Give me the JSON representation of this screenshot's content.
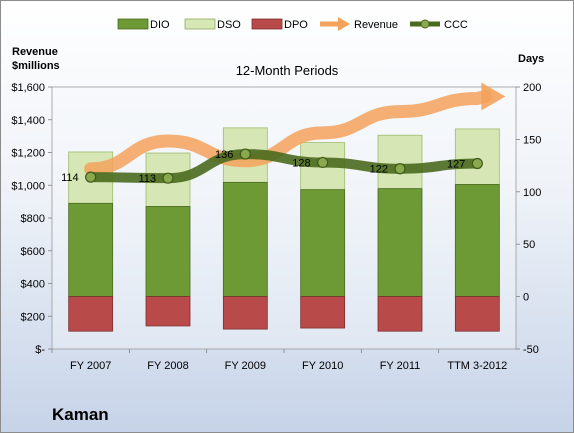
{
  "chart_data": {
    "type": "bar",
    "title": "12-Month Periods",
    "company": "Kaman",
    "categories": [
      "FY 2007",
      "FY 2008",
      "FY 2009",
      "FY 2010",
      "FY 2011",
      "TTM 3-2012"
    ],
    "left_axis": {
      "title_line1": "Revenue",
      "title_line2": "$millions",
      "ylim": [
        0,
        1600
      ],
      "ticks": [
        0,
        200,
        400,
        600,
        800,
        1000,
        1200,
        1400,
        1600
      ],
      "tick_labels": [
        "$-",
        "$200",
        "$400",
        "$600",
        "$800",
        "$1,000",
        "$1,200",
        "$1,400",
        "$1,600"
      ]
    },
    "right_axis": {
      "title": "Days",
      "ylim": [
        -50,
        200
      ],
      "ticks": [
        -50,
        0,
        50,
        100,
        150,
        200
      ],
      "tick_labels": [
        "-50",
        "0",
        "50",
        "100",
        "150",
        "200"
      ]
    },
    "series": [
      {
        "name": "DIO",
        "kind": "bar-stack",
        "axis": "days",
        "color": "#6e9a36",
        "values": [
          89,
          86,
          109,
          102,
          103,
          107
        ]
      },
      {
        "name": "DSO",
        "kind": "bar-stack",
        "axis": "days",
        "color": "#d6e6b4",
        "values": [
          49,
          51,
          52,
          45,
          51,
          53
        ]
      },
      {
        "name": "DPO",
        "kind": "bar-negative",
        "axis": "days",
        "color": "#b84a4a",
        "values": [
          -33,
          -28,
          -31,
          -30,
          -33,
          -33
        ]
      },
      {
        "name": "Revenue",
        "kind": "trend-arrow",
        "axis": "revenue",
        "color": "#f4a25c",
        "values": [
          1100,
          1270,
          1150,
          1320,
          1450,
          1530
        ]
      },
      {
        "name": "CCC",
        "kind": "line",
        "axis": "days",
        "color": "#4a6a1e",
        "values": [
          114,
          113,
          136,
          128,
          122,
          127
        ]
      }
    ],
    "ccc_labels": [
      "114",
      "113",
      "136",
      "128",
      "122",
      "127"
    ],
    "grid": false,
    "legend": "top"
  }
}
